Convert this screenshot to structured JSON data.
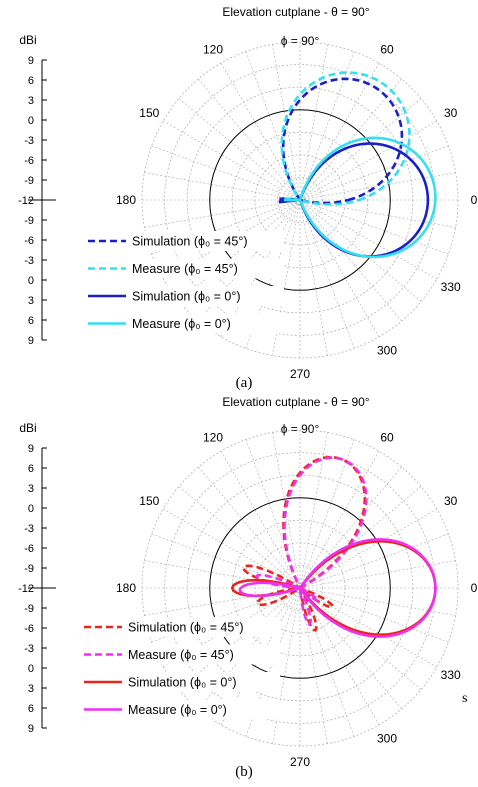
{
  "stray_text": "s",
  "chart_data": [
    {
      "type": "polar-line",
      "caption": "(a)",
      "title": "Elevation cutplane - θ = 90°",
      "top_label": "ϕ = 90°",
      "unit_label": "dBi",
      "radial_ticks": [
        "9",
        "6",
        "3",
        "0",
        "-3",
        "-6",
        "-9",
        "-12",
        "-9",
        "-6",
        "-3",
        "0",
        "3",
        "6",
        "9"
      ],
      "angle_ticks": [
        {
          "angle": 0,
          "label": "0"
        },
        {
          "angle": 30,
          "label": "30"
        },
        {
          "angle": 60,
          "label": "60"
        },
        {
          "angle": 120,
          "label": "120"
        },
        {
          "angle": 150,
          "label": "150"
        },
        {
          "angle": 180,
          "label": "180"
        },
        {
          "angle": 270,
          "label": "270"
        },
        {
          "angle": 300,
          "label": "300"
        },
        {
          "angle": 330,
          "label": "330"
        }
      ],
      "rlim": [
        -12,
        9
      ],
      "series": [
        {
          "name": "Simulation (ϕ₀ = 45°)",
          "color": "#1a20c8",
          "dash": "dashed",
          "lobes": [
            [
              55,
              6,
              28
            ],
            [
              178,
              -9,
              5
            ]
          ],
          "floor": -12
        },
        {
          "name": "Measure (ϕ₀ = 45°)",
          "color": "#33e0f0",
          "dash": "dashed",
          "lobes": [
            [
              54,
              7,
              28
            ],
            [
              175,
              -10,
              5
            ]
          ],
          "floor": -12
        },
        {
          "name": "Simulation (ϕ₀ = 0°)",
          "color": "#1a20c8",
          "dash": "solid",
          "lobes": [
            [
              0,
              5,
              30
            ],
            [
              185,
              -9,
              3
            ]
          ],
          "floor": -12
        },
        {
          "name": "Measure (ϕ₀ = 0°)",
          "color": "#33e0f0",
          "dash": "solid",
          "lobes": [
            [
              2,
              6,
              29
            ],
            [
              180,
              -10,
              4
            ]
          ],
          "floor": -12
        }
      ]
    },
    {
      "type": "polar-line",
      "caption": "(b)",
      "title": "Elevation cutplane - θ = 90°",
      "top_label": "ϕ = 90°",
      "unit_label": "dBi",
      "radial_ticks": [
        "9",
        "6",
        "3",
        "0",
        "-3",
        "-6",
        "-9",
        "-12",
        "-9",
        "-6",
        "-3",
        "0",
        "3",
        "6",
        "9"
      ],
      "angle_ticks": [
        {
          "angle": 0,
          "label": "0"
        },
        {
          "angle": 30,
          "label": "30"
        },
        {
          "angle": 60,
          "label": "60"
        },
        {
          "angle": 120,
          "label": "120"
        },
        {
          "angle": 150,
          "label": "150"
        },
        {
          "angle": 180,
          "label": "180"
        },
        {
          "angle": 270,
          "label": "270"
        },
        {
          "angle": 300,
          "label": "300"
        },
        {
          "angle": 330,
          "label": "330"
        }
      ],
      "rlim": [
        -12,
        9
      ],
      "series": [
        {
          "name": "Simulation (ϕ₀ = 45°)",
          "color": "#e8261a",
          "dash": "dashed",
          "lobes": [
            [
              73,
              6,
              18
            ],
            [
              160,
              -4,
              8
            ],
            [
              200,
              -6,
              10
            ],
            [
              290,
              -6,
              8
            ],
            [
              330,
              -7,
              8
            ]
          ],
          "floor": -12
        },
        {
          "name": "Measure (ϕ₀ = 45°)",
          "color": "#f030f0",
          "dash": "dashed",
          "lobes": [
            [
              72,
              6,
              18
            ],
            [
              165,
              -6,
              8
            ],
            [
              285,
              -7,
              8
            ],
            [
              325,
              -9,
              8
            ]
          ],
          "floor": -12
        },
        {
          "name": "Simulation (ϕ₀ = 0°)",
          "color": "#e8261a",
          "dash": "solid",
          "lobes": [
            [
              0,
              6,
              22
            ],
            [
              180,
              -3,
              10
            ]
          ],
          "floor": -12
        },
        {
          "name": "Measure (ϕ₀ = 0°)",
          "color": "#f030f0",
          "dash": "solid",
          "lobes": [
            [
              0,
              6,
              23
            ],
            [
              182,
              -4,
              10
            ]
          ],
          "floor": -12
        }
      ]
    }
  ]
}
